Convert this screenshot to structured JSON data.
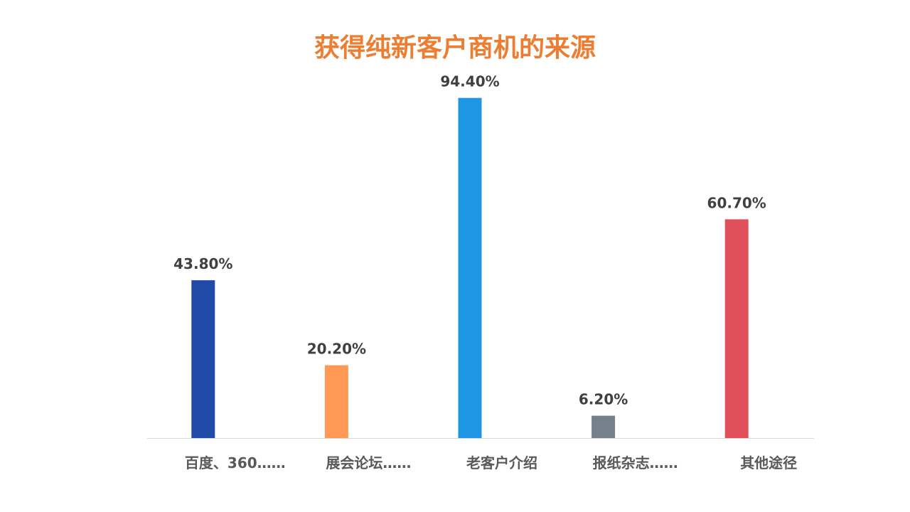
{
  "chart_data": {
    "type": "bar",
    "title": "获得纯新客户商机的来源",
    "categories": [
      "百度、360……",
      "展会论坛……",
      "老客户介绍",
      "报纸杂志……",
      "其他途径"
    ],
    "values": [
      43.8,
      20.2,
      94.4,
      6.2,
      60.7
    ],
    "data_labels": [
      "43.80%",
      "20.20%",
      "94.40%",
      "6.20%",
      "60.70%"
    ],
    "colors": [
      "#1F4AA8",
      "#FF9955",
      "#1E96E3",
      "#76808A",
      "#E0505A"
    ],
    "ylim": [
      0,
      100
    ],
    "grid": false,
    "legend": "none"
  }
}
